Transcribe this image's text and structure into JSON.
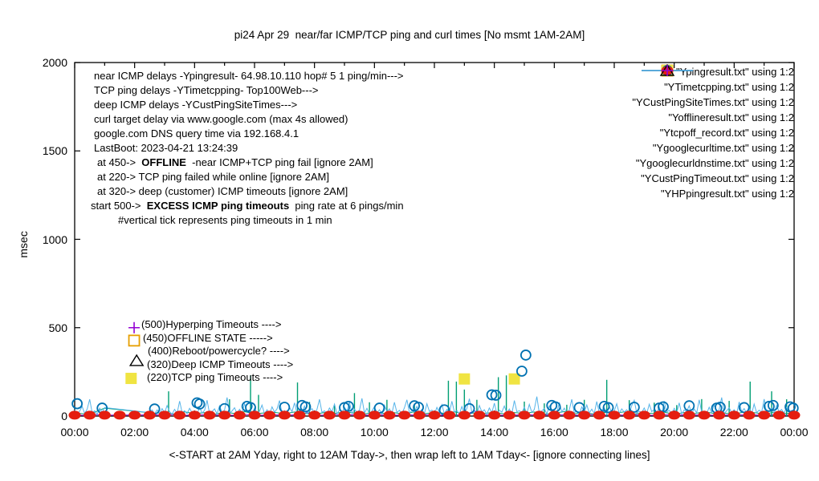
{
  "title": "pi24 Apr 29  near/far ICMP/TCP ping and curl times [No msmt 1AM-2AM]",
  "xlabel_note": "<-START at 2AM Yday, right to 12AM Tday->, then wrap left to 1AM Tday<- [ignore connecting lines]",
  "ylabel": "msec",
  "annotations_left": [
    {
      "x": 117,
      "parts": [
        {
          "t": "near ICMP delays -Ypingresult- 64.98.10.110 hop# 5 1 ping/min--->"
        }
      ]
    },
    {
      "x": 117,
      "parts": [
        {
          "t": "TCP ping delays -YTimetcpping- Top100Web--->"
        }
      ]
    },
    {
      "x": 117,
      "parts": [
        {
          "t": "deep ICMP delays -YCustPingSiteTimes--->"
        }
      ]
    },
    {
      "x": 117,
      "parts": [
        {
          "t": "curl target delay via www.google.com (max 4s allowed)"
        }
      ]
    },
    {
      "x": 117,
      "parts": [
        {
          "t": "google.com DNS query time via 192.168.4.1"
        }
      ]
    },
    {
      "x": 117,
      "parts": [
        {
          "t": "LastBoot: 2023-04-21 13:24:39"
        }
      ]
    },
    {
      "x": 121,
      "parts": [
        {
          "t": "at 450->  "
        },
        {
          "t": "OFFLINE",
          "b": true
        },
        {
          "t": "  -near ICMP+TCP ping fail [ignore 2AM]"
        }
      ]
    },
    {
      "x": 121,
      "parts": [
        {
          "t": "at 220-> TCP ping failed while online [ignore 2AM]"
        }
      ]
    },
    {
      "x": 121,
      "parts": [
        {
          "t": "at 320-> deep (customer) ICMP timeouts [ignore 2AM]"
        }
      ]
    },
    {
      "x": 113,
      "parts": [
        {
          "t": "start 500->  "
        },
        {
          "t": "EXCESS ICMP ping timeouts",
          "b": true
        },
        {
          "t": "  ping rate at 6 pings/min"
        }
      ]
    },
    {
      "x": 147,
      "parts": [
        {
          "t": "#vertical tick represents ping timeouts in 1 min"
        }
      ]
    }
  ],
  "annotations_mid": [
    {
      "x": 176,
      "label": "(500)Hyperping Timeouts ---->"
    },
    {
      "x": 178,
      "label": "(450)OFFLINE STATE ----->"
    },
    {
      "x": 184,
      "label": "(400)Reboot/powercycle? ---->"
    },
    {
      "x": 183,
      "label": "(320)Deep ICMP Timeouts ---->"
    },
    {
      "x": 183,
      "label": "(220)TCP ping Timeouts ---->"
    }
  ],
  "chart_data": {
    "type": "line",
    "title": "pi24 Apr 29  near/far ICMP/TCP ping and curl times [No msmt 1AM-2AM]",
    "xlabel": "<-START at 2AM Yday, right to 12AM Tday->, then wrap left to 1AM Tday<- [ignore connecting lines]",
    "ylabel": "msec",
    "ylim": [
      0,
      2000
    ],
    "xlim_minutes": [
      0,
      1440
    ],
    "grid": false,
    "legend_position": "top-right-inside",
    "yticks": [
      0,
      500,
      1000,
      1500,
      2000
    ],
    "xticks": [
      "00:00",
      "02:00",
      "04:00",
      "06:00",
      "08:00",
      "10:00",
      "12:00",
      "14:00",
      "16:00",
      "18:00",
      "20:00",
      "22:00",
      "00:00"
    ],
    "no_measurement_gap_minutes": [
      60,
      150
    ],
    "series": [
      {
        "name": "Ypingresult",
        "label": "\"Ypingresult.txt\" using 1:2",
        "color": "#9400d3",
        "style": "line",
        "step_minutes": 20,
        "values": [
          6,
          4,
          8,
          5,
          null,
          null,
          null,
          null,
          7,
          5,
          9,
          4,
          6,
          8,
          5,
          7,
          4,
          9,
          6,
          5,
          8,
          4,
          7,
          25,
          5,
          6,
          9,
          4,
          8,
          5,
          7,
          6,
          4,
          9,
          5,
          8,
          6,
          4,
          7,
          5,
          30,
          6,
          8,
          4,
          5,
          9,
          6,
          7,
          4,
          8,
          5,
          6,
          9,
          4,
          7,
          5,
          8,
          6,
          4,
          9,
          5,
          7,
          6,
          8,
          4,
          5,
          9,
          6,
          7,
          4,
          8,
          5,
          6
        ]
      },
      {
        "name": "YTimetcpping",
        "label": "\"YTimetcpping.txt\" using 1:2",
        "color": "#009e73",
        "style": "line+impulses",
        "step_minutes": 20,
        "values": [
          18,
          12,
          22,
          45,
          null,
          null,
          null,
          null,
          16,
          20,
          11,
          24,
          14,
          19,
          10,
          22,
          15,
          25,
          12,
          18,
          21,
          13,
          23,
          16,
          11,
          20,
          14,
          24,
          17,
          12,
          22,
          15,
          19,
          10,
          25,
          13,
          21,
          16,
          24,
          11,
          18,
          14,
          22,
          12,
          20,
          15,
          23,
          10,
          17,
          25,
          13,
          19,
          11,
          21,
          16,
          24,
          12,
          18,
          14,
          22,
          10,
          20,
          13,
          25,
          15,
          17,
          11,
          23,
          19,
          12,
          21,
          14,
          18
        ],
        "impulses": [
          [
            188,
            140
          ],
          [
            310,
            95
          ],
          [
            352,
            230
          ],
          [
            368,
            120
          ],
          [
            446,
            190
          ],
          [
            470,
            80
          ],
          [
            520,
            62
          ],
          [
            560,
            130
          ],
          [
            590,
            78
          ],
          [
            625,
            92
          ],
          [
            680,
            70
          ],
          [
            748,
            200
          ],
          [
            764,
            195
          ],
          [
            780,
            150
          ],
          [
            805,
            92
          ],
          [
            848,
            220
          ],
          [
            864,
            230
          ],
          [
            900,
            82
          ],
          [
            940,
            72
          ],
          [
            985,
            64
          ],
          [
            1020,
            92
          ],
          [
            1065,
            205
          ],
          [
            1110,
            90
          ],
          [
            1160,
            76
          ],
          [
            1205,
            62
          ],
          [
            1255,
            96
          ],
          [
            1310,
            86
          ],
          [
            1352,
            195
          ],
          [
            1395,
            140
          ],
          [
            1425,
            95
          ]
        ]
      },
      {
        "name": "YCustPingSiteTimes",
        "label": "\"YCustPingSiteTimes.txt\" using 1:2",
        "color": "#56b4e9",
        "style": "line",
        "step_minutes": 5,
        "values": [
          35,
          12,
          28,
          55,
          15,
          40,
          95,
          18,
          30,
          10,
          45,
          22,
          48,
          null,
          null,
          null,
          null,
          null,
          null,
          null,
          null,
          null,
          null,
          null,
          null,
          null,
          null,
          null,
          null,
          null,
          20,
          35,
          12,
          35,
          14,
          42,
          18,
          60,
          25,
          11,
          38,
          16,
          85,
          20,
          30,
          13,
          44,
          19,
          28,
          10,
          50,
          17,
          33,
          90,
          14,
          26,
          41,
          12,
          58,
          21,
          35,
          105,
          16,
          29,
          47,
          13,
          38,
          18,
          70,
          24,
          32,
          11,
          45,
          19,
          27,
          62,
          14,
          36,
          10,
          52,
          22,
          40,
          88,
          17,
          31,
          12,
          48,
          25,
          75,
          15,
          34,
          20,
          57,
          11,
          29,
          42,
          16,
          38,
          95,
          21,
          30,
          13,
          46,
          24,
          68,
          12,
          35,
          18,
          51,
          27,
          80,
          14,
          39,
          22,
          33,
          100,
          17,
          44,
          12,
          28,
          53,
          19,
          36,
          11,
          62,
          25,
          41,
          15,
          78,
          20,
          32,
          13,
          47,
          92,
          18,
          30,
          24,
          55,
          12,
          38,
          16,
          70,
          26,
          34,
          10,
          49,
          21,
          65,
          14,
          37,
          19,
          84,
          23,
          31,
          12,
          54,
          17,
          42,
          98,
          20,
          28,
          15,
          60,
          24,
          36,
          11,
          46,
          19,
          73,
          13,
          33,
          22,
          57,
          16,
          40,
          12,
          88,
          25,
          30,
          18,
          50,
          14,
          66,
          21,
          37,
          110,
          15,
          29,
          43,
          12,
          58,
          20,
          31,
          16,
          77,
          22,
          45,
          13,
          35,
          95,
          19,
          28,
          11,
          52,
          24,
          63,
          17,
          39,
          14,
          82,
          21,
          33,
          48,
          12,
          56,
          18,
          30,
          70,
          15,
          41,
          23,
          36,
          12,
          59,
          90,
          17,
          27,
          20,
          46,
          13,
          67,
          25,
          38,
          16,
          52,
          11,
          85,
          22,
          32,
          14,
          44,
          19,
          75,
          12,
          35,
          26,
          58,
          15,
          40,
          18,
          92,
          23,
          29,
          13,
          50,
          21,
          64,
          17,
          38,
          105,
          14,
          30,
          47,
          20,
          36,
          12,
          80,
          24,
          42,
          16,
          55,
          11,
          68,
          19,
          33,
          22,
          96,
          14,
          28,
          45,
          13,
          61,
          25,
          37,
          17,
          50,
          20,
          32,
          30
        ]
      },
      {
        "name": "Yofflineresult",
        "label": "\"Yofflineresult.txt\" using 1:2",
        "color": "#e69f00",
        "style": "square-open",
        "points": [
          [
            119,
            427
          ]
        ]
      },
      {
        "name": "Ytcpoff_record",
        "label": "\"Ytcpoff_record.txt\" using 1:2",
        "color": "#f0e442",
        "style": "square-fill",
        "points": [
          [
            113,
            213
          ],
          [
            780,
            210
          ],
          [
            880,
            210
          ]
        ]
      },
      {
        "name": "Ygooglecurltime",
        "label": "\"Ygooglecurltime.txt\" using 1:2",
        "color": "#0072b2",
        "style": "circle-open",
        "points": [
          [
            5,
            70
          ],
          [
            55,
            45
          ],
          [
            160,
            40
          ],
          [
            245,
            75
          ],
          [
            250,
            68
          ],
          [
            300,
            42
          ],
          [
            345,
            55
          ],
          [
            352,
            48
          ],
          [
            420,
            50
          ],
          [
            455,
            60
          ],
          [
            462,
            52
          ],
          [
            540,
            48
          ],
          [
            548,
            55
          ],
          [
            610,
            45
          ],
          [
            680,
            58
          ],
          [
            688,
            50
          ],
          [
            740,
            35
          ],
          [
            790,
            42
          ],
          [
            835,
            120
          ],
          [
            843,
            118
          ],
          [
            895,
            254
          ],
          [
            903,
            345
          ],
          [
            955,
            60
          ],
          [
            962,
            52
          ],
          [
            1010,
            48
          ],
          [
            1060,
            55
          ],
          [
            1068,
            48
          ],
          [
            1120,
            50
          ],
          [
            1170,
            45
          ],
          [
            1178,
            52
          ],
          [
            1230,
            58
          ],
          [
            1285,
            45
          ],
          [
            1292,
            50
          ],
          [
            1340,
            48
          ],
          [
            1390,
            55
          ],
          [
            1398,
            60
          ],
          [
            1432,
            52
          ],
          [
            1438,
            45
          ]
        ]
      },
      {
        "name": "Ygooglecurldnstime",
        "label": "\"Ygooglecurldnstime.txt\" using 1:2",
        "color": "#e51e10",
        "style": "circle-fill",
        "value": 5,
        "minutes": [
          0,
          30,
          60,
          90,
          120,
          150,
          180,
          210,
          240,
          270,
          300,
          330,
          360,
          390,
          420,
          450,
          480,
          510,
          540,
          570,
          600,
          630,
          660,
          690,
          720,
          750,
          780,
          810,
          840,
          870,
          900,
          930,
          960,
          990,
          1020,
          1050,
          1080,
          1110,
          1140,
          1170,
          1200,
          1230,
          1260,
          1290,
          1320,
          1350,
          1380,
          1410,
          1440
        ]
      },
      {
        "name": "YCustPingTimeout",
        "label": "\"YCustPingTimeout.txt\" using 1:2",
        "color": "#000000",
        "style": "triangle-open",
        "points": [
          [
            124,
            313
          ]
        ]
      },
      {
        "name": "YHPpingresult",
        "label": "\"YHPpingresult.txt\" using 1:2",
        "color": "#9400d3",
        "style": "plus",
        "points": [
          [
            119,
            500
          ]
        ]
      }
    ]
  }
}
